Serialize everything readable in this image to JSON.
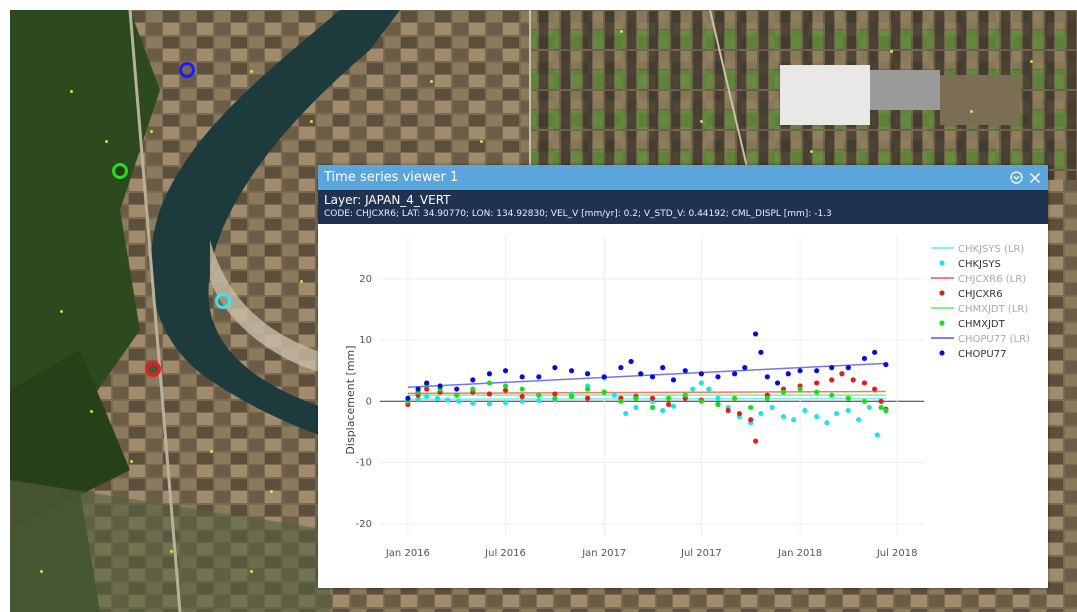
{
  "window": {
    "title": "Time series viewer 1",
    "layer_label": "Layer: JAPAN_4_VERT",
    "info": "CODE: CHJCXR6; LAT: 34.90770; LON: 134.92830; VEL_V [mm/yr]: 0.2; V_STD_V: 0.44192; CML_DISPL [mm]: -1.3",
    "collapse_icon": "collapse-icon",
    "close_icon": "close-icon"
  },
  "map": {
    "markers": [
      {
        "name": "CHOPU77",
        "color": "#1a1aff"
      },
      {
        "name": "CHMXJDT",
        "color": "#22dd22"
      },
      {
        "name": "CHKJSYS",
        "color": "#33e6ee"
      },
      {
        "name": "CHJCXR6",
        "color": "#ee1b1b"
      }
    ]
  },
  "colors": {
    "title_bar": "#5aa6dc",
    "info_bar": "#1f3351",
    "cyan": "#1ee3e8",
    "red": "#e51c1c",
    "green": "#17e017",
    "blue": "#0b0bd8"
  },
  "chart_data": {
    "type": "scatter",
    "ylabel": "Displacement [mm]",
    "ylim": [
      -22,
      27
    ],
    "yticks": [
      -20,
      -10,
      0,
      10,
      20
    ],
    "xticks": [
      "Jan 2016",
      "Jul 2016",
      "Jan 2017",
      "Jul 2017",
      "Jan 2018",
      "Jul 2018"
    ],
    "xtick_dates": [
      "2016-01-01",
      "2016-07-01",
      "2017-01-01",
      "2017-07-01",
      "2018-01-01",
      "2018-07-01"
    ],
    "xlim": [
      "2015-11-10",
      "2018-08-20"
    ],
    "grid": true,
    "legend": "right",
    "series": [
      {
        "name": "CHKJSYS (LR)",
        "kind": "line",
        "color": "#5ee8ee",
        "values": [
          [
            "2016-01-01",
            0.35
          ],
          [
            "2018-06-10",
            0.45
          ]
        ]
      },
      {
        "name": "CHKJSYS",
        "kind": "markers",
        "color": "#1ee3e8",
        "values": [
          [
            "2016-01-01",
            0.0
          ],
          [
            "2016-01-20",
            0.4
          ],
          [
            "2016-02-05",
            0.8
          ],
          [
            "2016-02-25",
            0.5
          ],
          [
            "2016-03-15",
            0.2
          ],
          [
            "2016-04-05",
            0.0
          ],
          [
            "2016-05-01",
            -0.3
          ],
          [
            "2016-06-01",
            -0.4
          ],
          [
            "2016-07-01",
            -0.2
          ],
          [
            "2016-08-01",
            0.0
          ],
          [
            "2016-09-01",
            0.1
          ],
          [
            "2016-10-01",
            0.3
          ],
          [
            "2016-11-01",
            1.2
          ],
          [
            "2016-12-01",
            2.5
          ],
          [
            "2017-01-01",
            3.8
          ],
          [
            "2017-01-20",
            1.0
          ],
          [
            "2017-02-10",
            -2.0
          ],
          [
            "2017-03-01",
            -1.0
          ],
          [
            "2017-04-01",
            0.0
          ],
          [
            "2017-04-20",
            -1.5
          ],
          [
            "2017-05-10",
            -0.8
          ],
          [
            "2017-06-01",
            1.0
          ],
          [
            "2017-06-15",
            2.0
          ],
          [
            "2017-07-01",
            3.0
          ],
          [
            "2017-07-15",
            2.0
          ],
          [
            "2017-08-01",
            0.5
          ],
          [
            "2017-08-20",
            -1.0
          ],
          [
            "2017-09-10",
            -2.5
          ],
          [
            "2017-10-01",
            -3.5
          ],
          [
            "2017-10-20",
            -2.0
          ],
          [
            "2017-11-10",
            -1.0
          ],
          [
            "2017-12-01",
            -2.5
          ],
          [
            "2017-12-20",
            -3.0
          ],
          [
            "2018-01-10",
            -1.5
          ],
          [
            "2018-02-01",
            -2.5
          ],
          [
            "2018-02-20",
            -3.5
          ],
          [
            "2018-03-10",
            -2.0
          ],
          [
            "2018-04-01",
            -1.5
          ],
          [
            "2018-04-20",
            -3.0
          ],
          [
            "2018-05-10",
            -1.0
          ],
          [
            "2018-05-25",
            -5.5
          ],
          [
            "2018-06-10",
            -1.5
          ]
        ]
      },
      {
        "name": "CHJCXR6 (LR)",
        "kind": "line",
        "color": "#ee5555",
        "values": [
          [
            "2016-01-01",
            1.3
          ],
          [
            "2018-06-10",
            1.6
          ]
        ]
      },
      {
        "name": "CHJCXR6",
        "kind": "markers",
        "color": "#e51c1c",
        "values": [
          [
            "2016-01-01",
            -0.5
          ],
          [
            "2016-01-20",
            1.0
          ],
          [
            "2016-02-05",
            2.0
          ],
          [
            "2016-03-01",
            1.5
          ],
          [
            "2016-04-01",
            1.0
          ],
          [
            "2016-05-01",
            1.5
          ],
          [
            "2016-06-01",
            1.2
          ],
          [
            "2016-07-01",
            1.8
          ],
          [
            "2016-08-01",
            0.8
          ],
          [
            "2016-09-01",
            1.0
          ],
          [
            "2016-10-01",
            1.2
          ],
          [
            "2016-11-01",
            0.8
          ],
          [
            "2016-12-01",
            0.5
          ],
          [
            "2017-01-01",
            1.5
          ],
          [
            "2017-02-01",
            0.5
          ],
          [
            "2017-03-01",
            0.8
          ],
          [
            "2017-04-01",
            0.5
          ],
          [
            "2017-05-01",
            -0.5
          ],
          [
            "2017-06-01",
            0.5
          ],
          [
            "2017-07-01",
            0.2
          ],
          [
            "2017-08-01",
            -0.5
          ],
          [
            "2017-08-20",
            -1.5
          ],
          [
            "2017-09-10",
            -2.0
          ],
          [
            "2017-10-01",
            -3.0
          ],
          [
            "2017-10-10",
            -6.5
          ],
          [
            "2017-11-01",
            1.0
          ],
          [
            "2017-12-01",
            2.0
          ],
          [
            "2018-01-01",
            2.5
          ],
          [
            "2018-02-01",
            3.0
          ],
          [
            "2018-03-01",
            3.5
          ],
          [
            "2018-03-20",
            4.5
          ],
          [
            "2018-04-10",
            3.5
          ],
          [
            "2018-05-01",
            3.0
          ],
          [
            "2018-05-20",
            2.0
          ],
          [
            "2018-06-01",
            0.0
          ],
          [
            "2018-06-10",
            -1.3
          ]
        ]
      },
      {
        "name": "CHMXJDT (LR)",
        "kind": "line",
        "color": "#66ee66",
        "values": [
          [
            "2016-01-01",
            1.0
          ],
          [
            "2018-06-10",
            1.0
          ]
        ]
      },
      {
        "name": "CHMXJDT",
        "kind": "markers",
        "color": "#17e017",
        "values": [
          [
            "2016-01-01",
            0.0
          ],
          [
            "2016-01-20",
            1.5
          ],
          [
            "2016-02-05",
            2.8
          ],
          [
            "2016-03-01",
            2.0
          ],
          [
            "2016-04-01",
            1.0
          ],
          [
            "2016-05-01",
            2.0
          ],
          [
            "2016-06-01",
            3.0
          ],
          [
            "2016-07-01",
            2.5
          ],
          [
            "2016-08-01",
            2.0
          ],
          [
            "2016-09-01",
            1.0
          ],
          [
            "2016-10-01",
            0.5
          ],
          [
            "2016-11-01",
            0.8
          ],
          [
            "2016-12-01",
            2.0
          ],
          [
            "2017-01-01",
            1.5
          ],
          [
            "2017-02-01",
            0.0
          ],
          [
            "2017-03-01",
            0.5
          ],
          [
            "2017-04-01",
            -1.0
          ],
          [
            "2017-05-01",
            0.5
          ],
          [
            "2017-06-01",
            1.0
          ],
          [
            "2017-07-01",
            0.0
          ],
          [
            "2017-08-01",
            -0.5
          ],
          [
            "2017-09-01",
            0.5
          ],
          [
            "2017-10-01",
            -1.0
          ],
          [
            "2017-11-01",
            0.5
          ],
          [
            "2017-12-01",
            1.5
          ],
          [
            "2018-01-01",
            2.0
          ],
          [
            "2018-02-01",
            1.5
          ],
          [
            "2018-03-01",
            1.0
          ],
          [
            "2018-04-01",
            0.5
          ],
          [
            "2018-05-01",
            0.0
          ],
          [
            "2018-06-01",
            -1.0
          ],
          [
            "2018-06-10",
            -1.5
          ]
        ]
      },
      {
        "name": "CHOPU77 (LR)",
        "kind": "line",
        "color": "#5555dd",
        "values": [
          [
            "2016-01-01",
            2.3
          ],
          [
            "2018-06-10",
            6.2
          ]
        ]
      },
      {
        "name": "CHOPU77",
        "kind": "markers",
        "color": "#0b0bd8",
        "values": [
          [
            "2016-01-01",
            0.5
          ],
          [
            "2016-01-20",
            2.0
          ],
          [
            "2016-02-05",
            3.0
          ],
          [
            "2016-03-01",
            2.5
          ],
          [
            "2016-04-01",
            2.0
          ],
          [
            "2016-05-01",
            3.5
          ],
          [
            "2016-06-01",
            4.5
          ],
          [
            "2016-07-01",
            5.0
          ],
          [
            "2016-08-01",
            4.0
          ],
          [
            "2016-09-01",
            4.0
          ],
          [
            "2016-10-01",
            5.5
          ],
          [
            "2016-11-01",
            5.0
          ],
          [
            "2016-12-01",
            4.5
          ],
          [
            "2017-01-01",
            4.0
          ],
          [
            "2017-02-01",
            5.5
          ],
          [
            "2017-02-20",
            6.5
          ],
          [
            "2017-03-10",
            4.5
          ],
          [
            "2017-04-01",
            4.0
          ],
          [
            "2017-04-20",
            5.5
          ],
          [
            "2017-05-10",
            3.5
          ],
          [
            "2017-06-01",
            5.0
          ],
          [
            "2017-07-01",
            4.5
          ],
          [
            "2017-08-01",
            4.0
          ],
          [
            "2017-09-01",
            4.5
          ],
          [
            "2017-09-20",
            5.5
          ],
          [
            "2017-10-10",
            11.0
          ],
          [
            "2017-10-20",
            8.0
          ],
          [
            "2017-11-01",
            4.0
          ],
          [
            "2017-11-20",
            3.0
          ],
          [
            "2017-12-10",
            4.5
          ],
          [
            "2018-01-01",
            5.0
          ],
          [
            "2018-02-01",
            5.0
          ],
          [
            "2018-03-01",
            5.5
          ],
          [
            "2018-04-01",
            5.5
          ],
          [
            "2018-05-01",
            7.0
          ],
          [
            "2018-05-20",
            8.0
          ],
          [
            "2018-06-10",
            6.0
          ]
        ]
      }
    ]
  }
}
